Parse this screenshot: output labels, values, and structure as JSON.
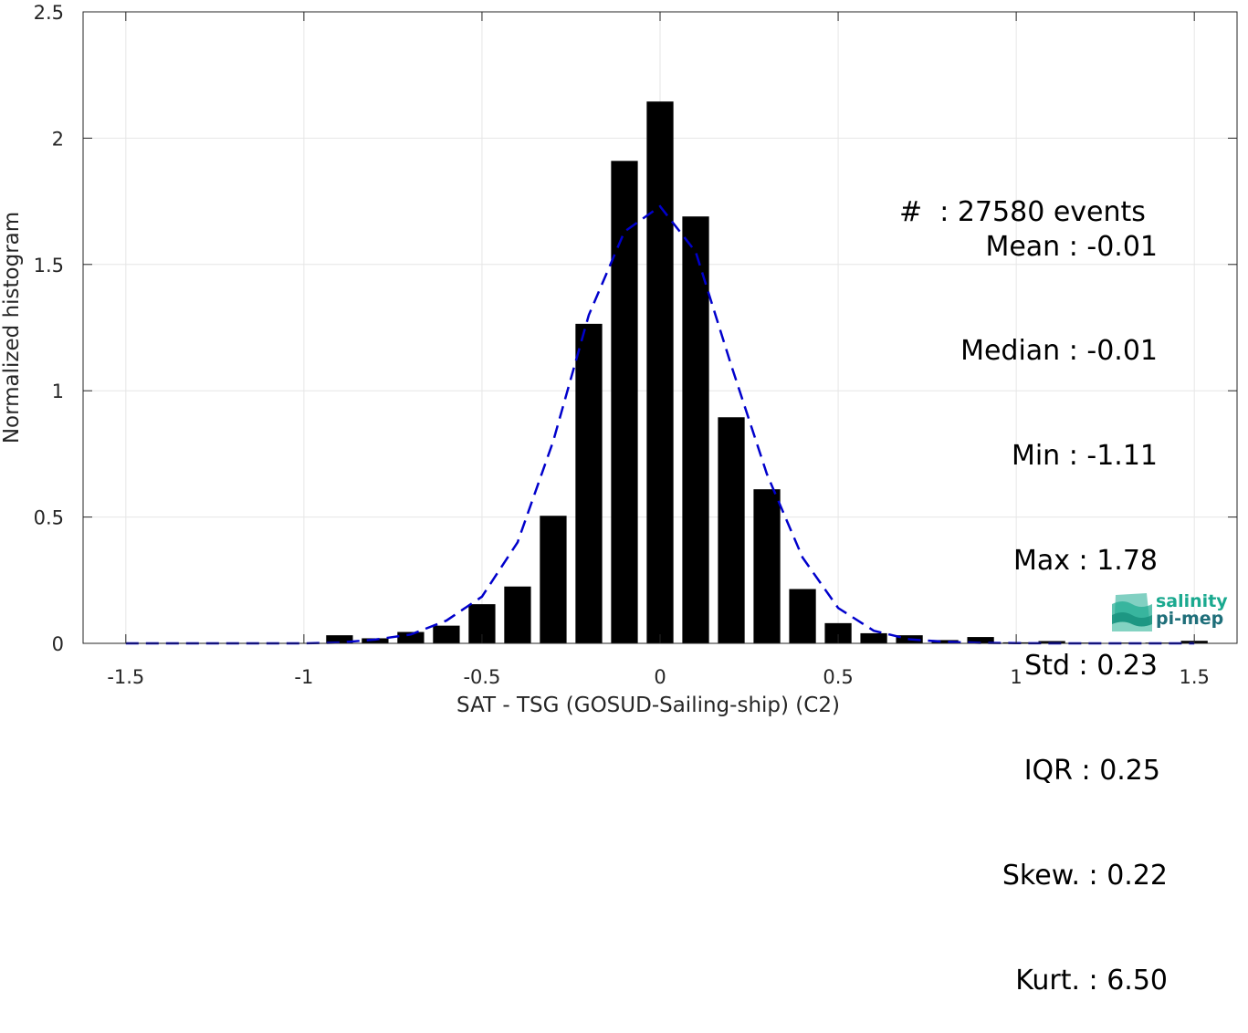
{
  "chart_data": {
    "type": "bar",
    "xlabel": "SAT - TSG (GOSUD-Sailing-ship) (C2)",
    "ylabel": "Normalized histogram",
    "xlim": [
      -1.62,
      1.62
    ],
    "ylim": [
      0,
      2.5
    ],
    "xticks": [
      "-1.5",
      "-1",
      "-0.5",
      "0",
      "0.5",
      "1",
      "1.5"
    ],
    "xtick_values": [
      -1.5,
      -1,
      -0.5,
      0,
      0.5,
      1,
      1.5
    ],
    "yticks": [
      "0",
      "0.5",
      "1",
      "1.5",
      "2",
      "2.5"
    ],
    "ytick_values": [
      0,
      0.5,
      1,
      1.5,
      2,
      2.5
    ],
    "grid": true,
    "bar_width": 0.075,
    "bars": {
      "x": [
        -0.9,
        -0.8,
        -0.7,
        -0.6,
        -0.5,
        -0.4,
        -0.3,
        -0.2,
        -0.1,
        0.0,
        0.1,
        0.2,
        0.3,
        0.4,
        0.5,
        0.6,
        0.7,
        0.8,
        0.9,
        1.0,
        1.1,
        1.2,
        1.3,
        1.4,
        1.5
      ],
      "values": [
        0.032,
        0.02,
        0.045,
        0.07,
        0.155,
        0.225,
        0.505,
        1.265,
        1.91,
        2.145,
        1.69,
        0.895,
        0.61,
        0.215,
        0.08,
        0.04,
        0.032,
        0.013,
        0.025,
        0.004,
        0.009,
        0.003,
        0.003,
        0.003,
        0.01
      ],
      "color": "#000000"
    },
    "fit_curve": {
      "style": "dashed",
      "color": "#0000cc",
      "x": [
        -1.5,
        -1.4,
        -1.3,
        -1.2,
        -1.1,
        -1.0,
        -0.9,
        -0.8,
        -0.7,
        -0.6,
        -0.5,
        -0.4,
        -0.3,
        -0.2,
        -0.1,
        0.0,
        0.1,
        0.2,
        0.3,
        0.4,
        0.5,
        0.6,
        0.7,
        0.8,
        0.9,
        1.0,
        1.1,
        1.2,
        1.3,
        1.4,
        1.5
      ],
      "y": [
        0.0,
        0.0,
        0.0,
        0.0,
        0.0,
        0.0,
        0.003,
        0.015,
        0.035,
        0.09,
        0.185,
        0.4,
        0.8,
        1.3,
        1.63,
        1.73,
        1.55,
        1.1,
        0.67,
        0.34,
        0.14,
        0.05,
        0.016,
        0.006,
        0.002,
        0.001,
        0.0,
        0.0,
        0.0,
        0.0,
        0.0
      ]
    },
    "stats": [
      {
        "label": "#  : 27580 events"
      },
      {
        "label": "Mean : -0.01"
      },
      {
        "label": "Median : -0.01"
      },
      {
        "label": "Min : -1.11"
      },
      {
        "label": "Max : 1.78"
      },
      {
        "label": "Std : 0.23"
      },
      {
        "label": "IQR : 0.25"
      },
      {
        "label": "Skew. : 0.22"
      },
      {
        "label": "Kurt. : 6.50"
      }
    ]
  },
  "logo": {
    "line1": "salinity",
    "line2": "pi-mep",
    "color1": "#1aa98f",
    "color2": "#1f6f7a"
  }
}
